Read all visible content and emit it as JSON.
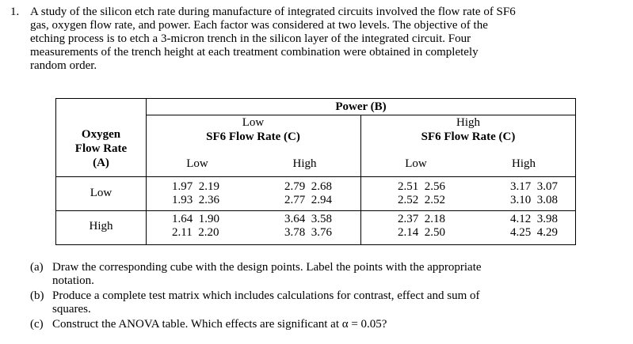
{
  "question": {
    "number": "1.",
    "lines": [
      "A study of the silicon etch rate during manufacture of integrated circuits involved the flow rate of SF6",
      "gas, oxygen flow rate, and power.  Each factor was considered at two levels.  The objective of the",
      "etching process is to etch a 3-micron trench in the silicon layer of the integrated circuit.  Four",
      "measurements of the trench height at each treatment combination were obtained in completely",
      "random order."
    ]
  },
  "table": {
    "power_header": "Power (B)",
    "row_header_lines": [
      "Oxygen",
      "Flow Rate",
      "(A)"
    ],
    "power_levels": [
      "Low",
      "High"
    ],
    "sf6_header": "SF6 Flow Rate (C)",
    "sf6_levels": [
      "Low",
      "High",
      "Low",
      "High"
    ],
    "rows": [
      {
        "label": "Low",
        "cells": [
          [
            "1.97  2.19",
            "1.93  2.36"
          ],
          [
            "2.79  2.68",
            "2.77  2.94"
          ],
          [
            "2.51  2.56",
            "2.52  2.52"
          ],
          [
            "3.17  3.07",
            "3.10  3.08"
          ]
        ]
      },
      {
        "label": "High",
        "cells": [
          [
            "1.64  1.90",
            "2.11  2.20"
          ],
          [
            "3.64  3.58",
            "3.78  3.76"
          ],
          [
            "2.37  2.18",
            "2.14  2.50"
          ],
          [
            "4.12  3.98",
            "4.25  4.29"
          ]
        ]
      }
    ]
  },
  "parts": [
    {
      "label": "(a)",
      "lines": [
        "Draw the corresponding cube with the design points.  Label the points with the appropriate",
        "notation."
      ]
    },
    {
      "label": "(b)",
      "lines": [
        "Produce a complete test matrix which includes calculations for contrast, effect and sum of",
        "squares."
      ]
    },
    {
      "label": "(c)",
      "lines": [
        "Construct the ANOVA table.  Which effects are significant at α = 0.05?"
      ]
    }
  ]
}
